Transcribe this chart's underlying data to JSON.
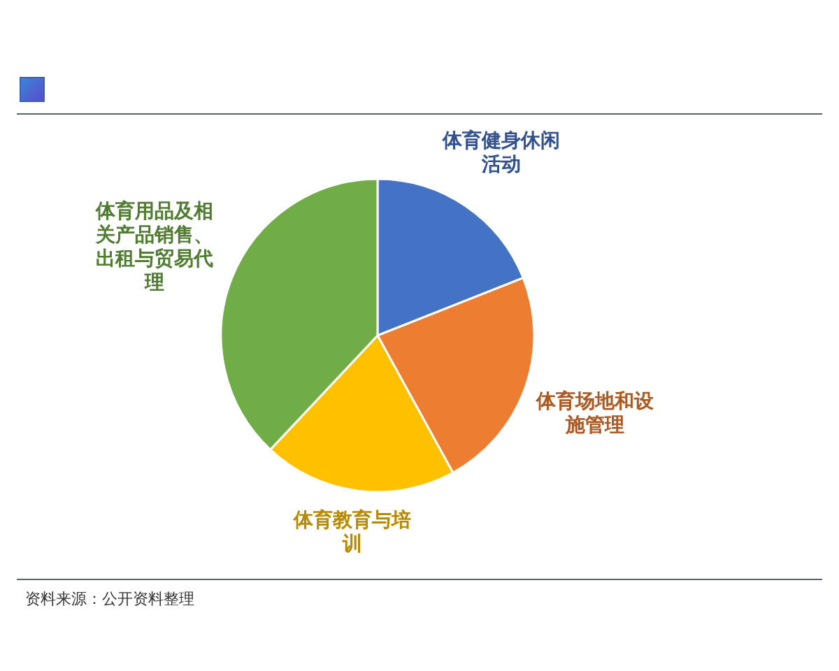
{
  "chart_data": {
    "type": "pie",
    "categories": [
      "体育健身休闲活动",
      "体育场地和设施管理",
      "体育教育与培训",
      "体育用品及相关产品销售、出租与贸易代理"
    ],
    "values": [
      19,
      23,
      20,
      38
    ],
    "colors": [
      "#4472c4",
      "#ed7d31",
      "#ffc000",
      "#70ad47"
    ],
    "annotations": [
      "资料来源：公开资料整理"
    ]
  }
}
